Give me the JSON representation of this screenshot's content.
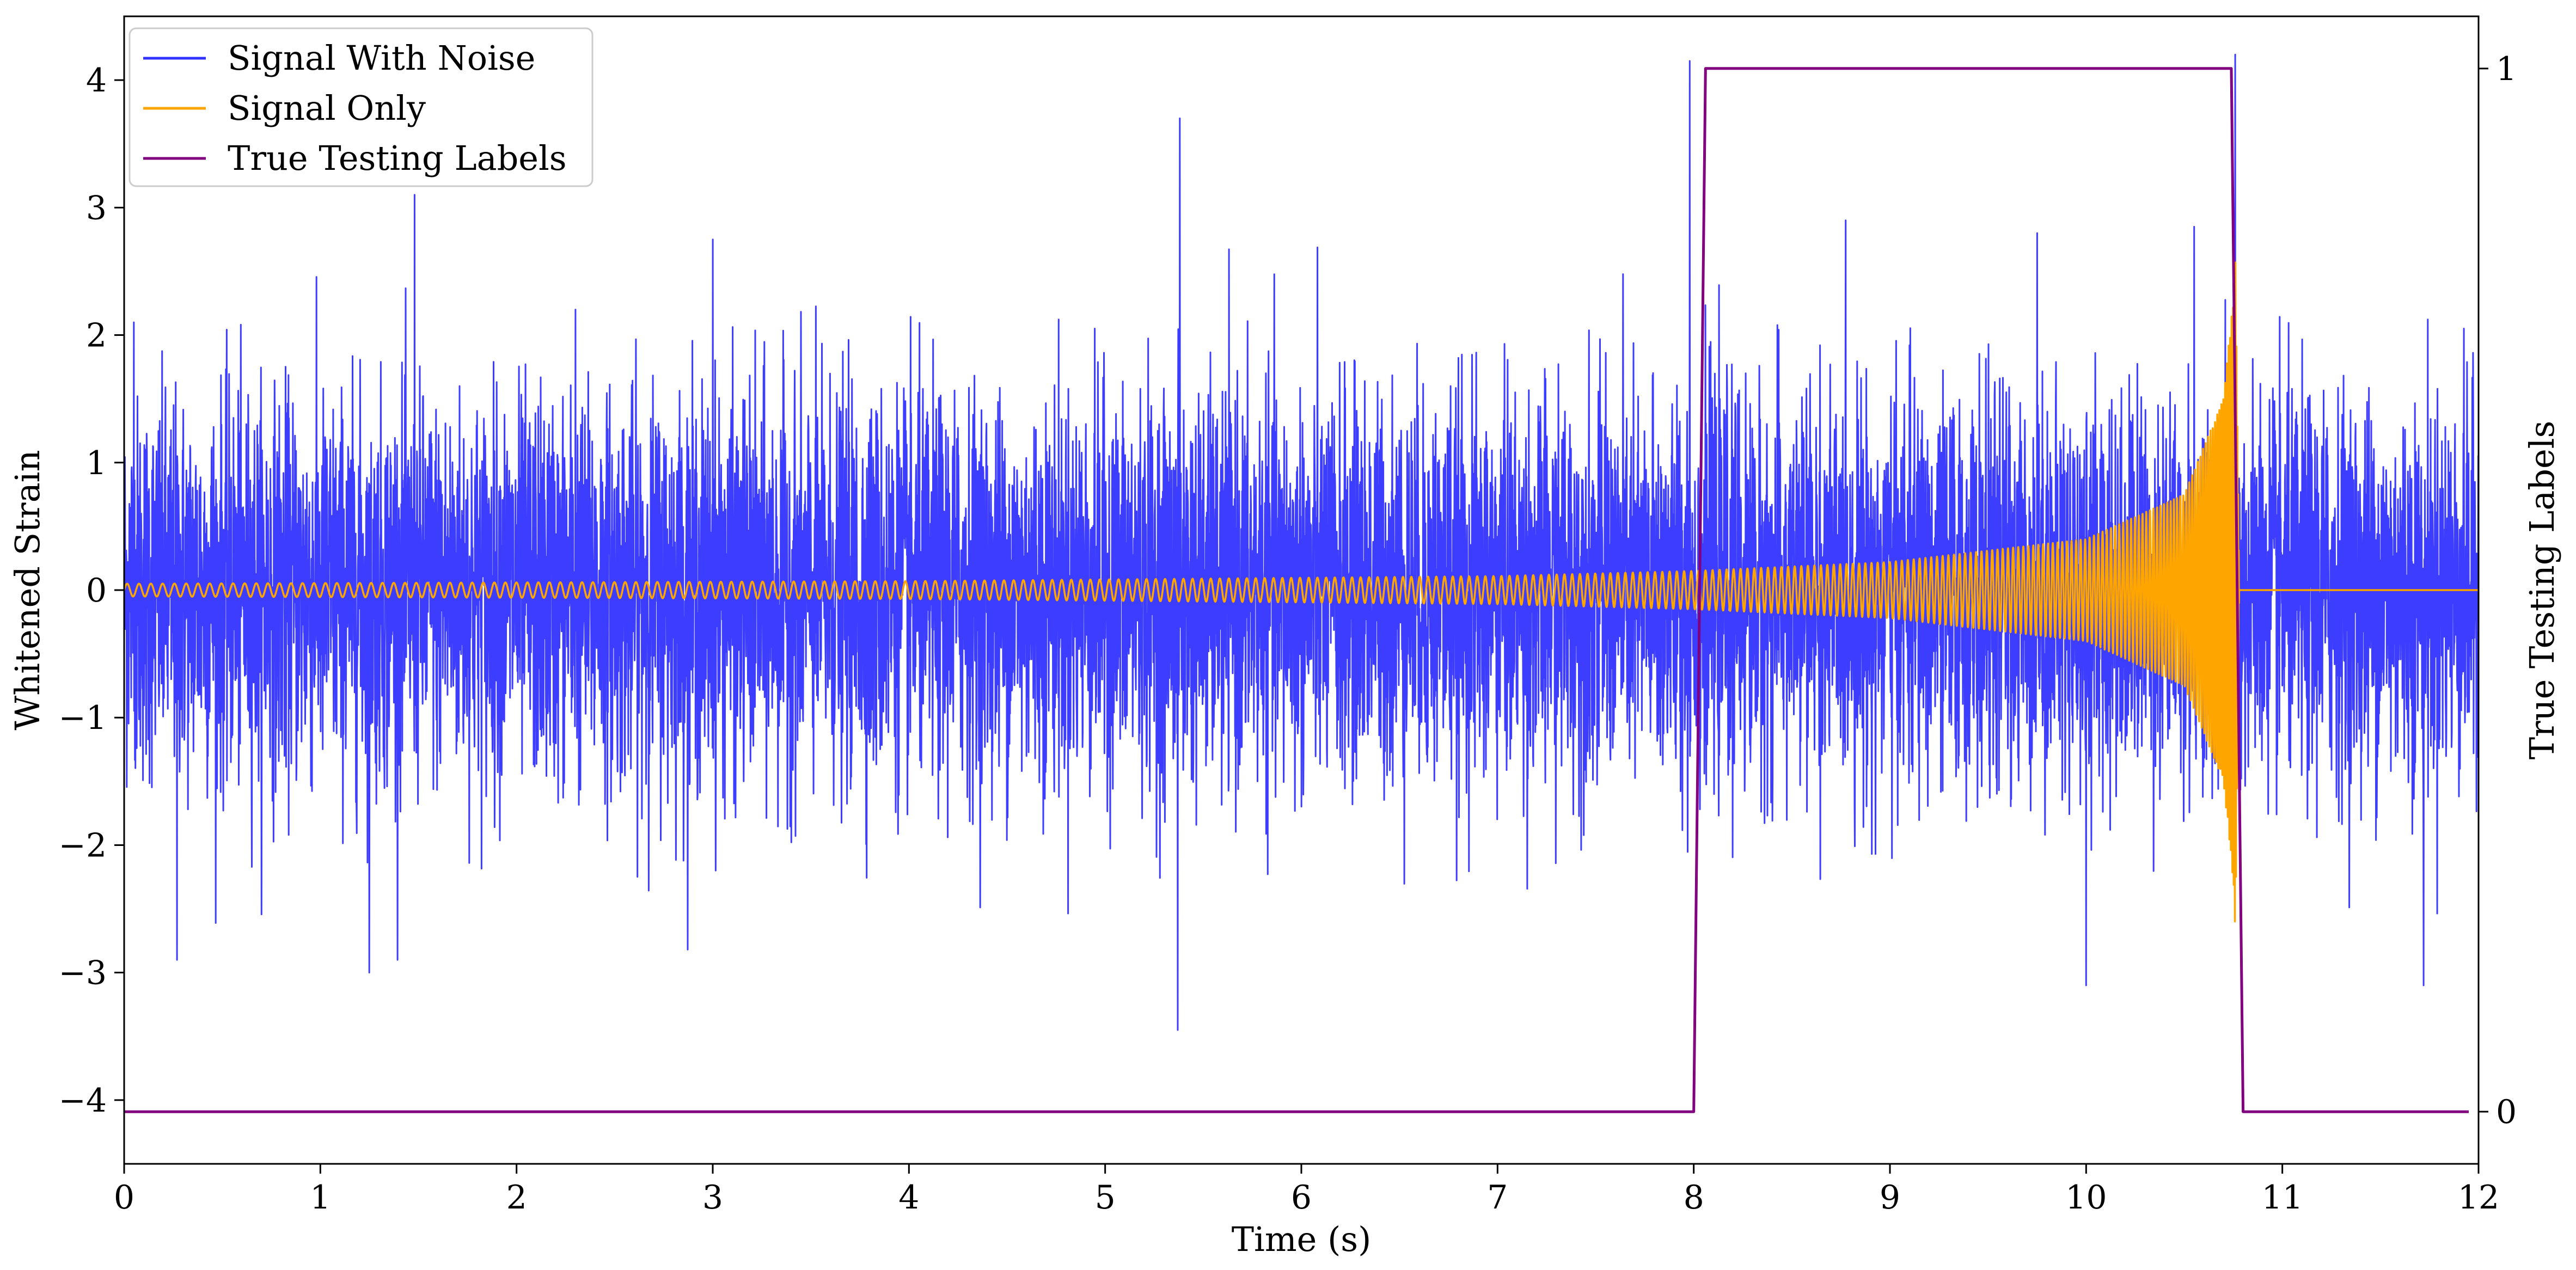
{
  "chart_data": {
    "type": "line",
    "title": "",
    "xlabel": "Time (s)",
    "ylabel": "Whitened Strain",
    "y2label": "True Testing Labels",
    "xlim": [
      0,
      12
    ],
    "ylim": [
      -4.5,
      4.5
    ],
    "y2lim": [
      -0.05,
      1.05
    ],
    "x_ticks": [
      0,
      1,
      2,
      3,
      4,
      5,
      6,
      7,
      8,
      9,
      10,
      11,
      12
    ],
    "x_tick_labels": [
      "0",
      "1",
      "2",
      "3",
      "4",
      "5",
      "6",
      "7",
      "8",
      "9",
      "10",
      "11",
      "12"
    ],
    "y_ticks": [
      -4,
      -3,
      -2,
      -1,
      0,
      1,
      2,
      3,
      4
    ],
    "y_tick_labels": [
      "−4",
      "−3",
      "−2",
      "−1",
      "0",
      "1",
      "2",
      "3",
      "4"
    ],
    "y2_ticks": [
      0,
      1
    ],
    "y2_tick_labels": [
      "0",
      "1"
    ],
    "grid": false,
    "legend_position": "top-left",
    "series": [
      {
        "name": "Signal With Noise",
        "axis": "left",
        "color": "#3333ff",
        "style": "noise",
        "sigma": 0.75,
        "envelope_rms": [
          [
            0,
            0.75
          ],
          [
            12,
            0.75
          ]
        ],
        "spikes": [
          [
            0.05,
            2.1
          ],
          [
            1.25,
            -3.0
          ],
          [
            1.48,
            3.1
          ],
          [
            5.38,
            3.7
          ],
          [
            5.37,
            -3.45
          ],
          [
            7.98,
            4.15
          ],
          [
            10.76,
            4.2
          ],
          [
            10.0,
            -3.1
          ],
          [
            0.27,
            -2.9
          ],
          [
            11.72,
            -3.1
          ],
          [
            2.3,
            2.2
          ],
          [
            3.0,
            2.75
          ],
          [
            9.75,
            2.8
          ],
          [
            10.55,
            2.85
          ]
        ]
      },
      {
        "name": "Signal Only",
        "axis": "left",
        "color": "#ffa500",
        "style": "chirp",
        "amplitude_envelope": [
          [
            0,
            0.05
          ],
          [
            4,
            0.07
          ],
          [
            7,
            0.11
          ],
          [
            8,
            0.15
          ],
          [
            9,
            0.22
          ],
          [
            10,
            0.4
          ],
          [
            10.5,
            0.75
          ],
          [
            10.7,
            1.5
          ],
          [
            10.75,
            2.3
          ],
          [
            10.76,
            2.8
          ],
          [
            10.78,
            0
          ]
        ],
        "after_signal_value": 0,
        "end_time": 10.78
      },
      {
        "name": "True Testing Labels",
        "axis": "right",
        "color": "#800080",
        "style": "line",
        "x": [
          0,
          8.0,
          8.06,
          10.74,
          10.8,
          11.95
        ],
        "y": [
          0,
          0,
          1,
          1,
          0,
          0
        ]
      }
    ]
  }
}
